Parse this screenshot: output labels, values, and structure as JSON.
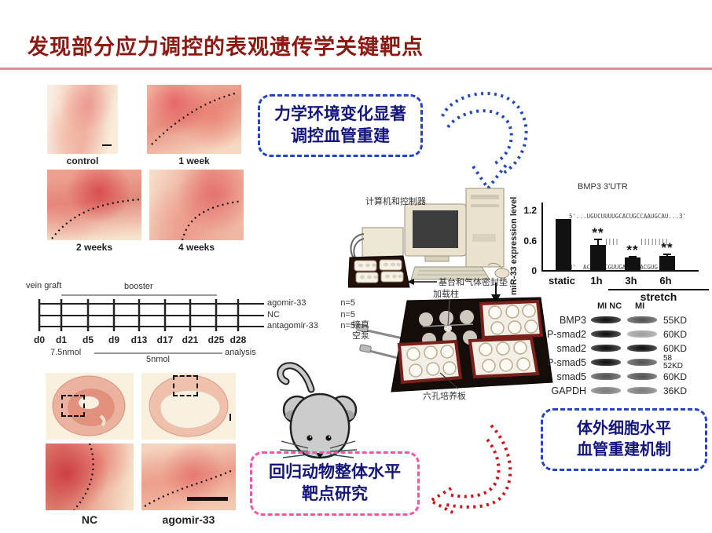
{
  "slide": {
    "title": "发现部分应力调控的表观遗传学关键靶点",
    "colors": {
      "title": "#8c1a14",
      "divider": "#e08e9a",
      "box_blue_border": "#2742c6",
      "box_pink_border": "#f553a8",
      "callout_text": "#15157e",
      "arrow_blue": "#2346bd",
      "arrow_red": "#cf1016"
    }
  },
  "callouts": {
    "mechanical": {
      "line1": "力学环境变化显著",
      "line2": "调控血管重建"
    },
    "invitro": {
      "line1": "体外细胞水平",
      "line2": "血管重建机制"
    },
    "invivo": {
      "line1": "回归动物整体水平",
      "line2": "靶点研究"
    }
  },
  "histology_top": {
    "panels": [
      {
        "label": "control"
      },
      {
        "label": "1 week"
      },
      {
        "label": "2 weeks"
      },
      {
        "label": "4 weeks"
      }
    ]
  },
  "histology_bottom": {
    "labels": [
      "NC",
      "agomir-33"
    ]
  },
  "device": {
    "computer_label": "计算机和控制器",
    "base_label": "基台和气体密封垫",
    "column_label": "加载柱",
    "vacuum_line1": "接真",
    "vacuum_line2": "空泵",
    "plate_label": "六孔培养板"
  },
  "chart_data": {
    "type": "bar",
    "title": "BMP3 3'UTR",
    "ylabel": "miR-33 expression level",
    "categories": [
      "static",
      "1h",
      "3h",
      "6h"
    ],
    "values": [
      1.0,
      0.5,
      0.24,
      0.27
    ],
    "errors": [
      0,
      0.12,
      0.04,
      0.05
    ],
    "significance": [
      "",
      "**",
      "**",
      "**"
    ],
    "ytick_labels": [
      "1.2",
      "0.6",
      "0"
    ],
    "ylim": [
      0,
      1.3
    ],
    "grid": false,
    "group_label": "stretch",
    "group_span": [
      "1h",
      "6h"
    ],
    "seq_top": "5'...UGUCUUUUGCACUGCCAAUGCAU...3'",
    "seq_pair": "          ||||      ||||||||",
    "seq_bottom": "3'  ACGUUACGUUGAUGUUACGUG  5'"
  },
  "western_blot": {
    "header_lane1": "MI NC",
    "header_lane2": "MI",
    "rows": [
      {
        "protein": "BMP3",
        "kd": "55KD"
      },
      {
        "protein": "P-smad2",
        "kd": "60KD"
      },
      {
        "protein": "smad2",
        "kd": "60KD"
      },
      {
        "protein": "P-smad5",
        "kd": "58",
        "kd2": "52KD"
      },
      {
        "protein": "smad5",
        "kd": "60KD"
      },
      {
        "protein": "GAPDH",
        "kd": "36KD"
      }
    ]
  },
  "timeline": {
    "vein_graft": "vein graft",
    "booster": "booster",
    "groups": [
      {
        "name": "agomir-33",
        "n": "n=5"
      },
      {
        "name": "NC",
        "n": "n=5"
      },
      {
        "name": "antagomir-33",
        "n": "n=5"
      }
    ],
    "days": [
      "d0",
      "d1",
      "d5",
      "d9",
      "d13",
      "d17",
      "d21",
      "d25",
      "d28"
    ],
    "dose1": "7.5nmol",
    "dose2": "5nmol",
    "analysis": "analysis"
  }
}
